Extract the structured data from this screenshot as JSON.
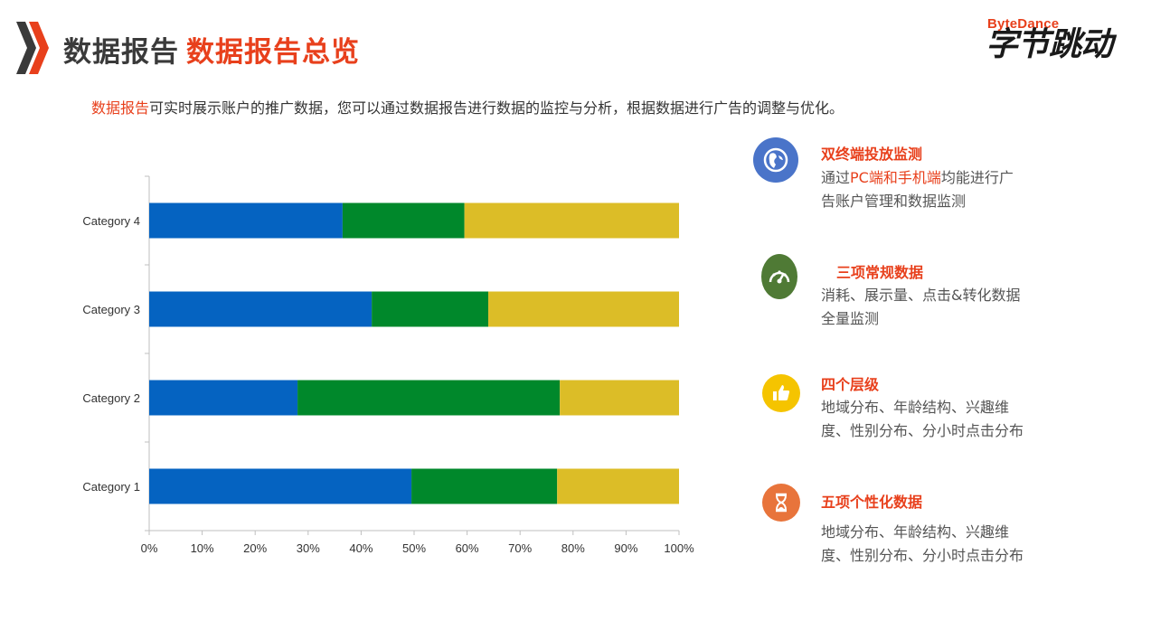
{
  "header": {
    "title_main": "数据报告",
    "title_sub": "数据报告总览"
  },
  "logo": {
    "top": "ByteDance",
    "bottom": "字节跳动"
  },
  "intro": {
    "highlight": "数据报告",
    "text": "可实时展示账户的推广数据，您可以通过数据报告进行数据的监控与分析，根据数据进行广告的调整与优化。"
  },
  "features": [
    {
      "icon": "globe-icon",
      "icon_color": "#4a74c9",
      "title": "双终端投放监测",
      "desc_pre": "通过",
      "desc_hl": "PC端和手机端",
      "desc_post": "均能进行广告账户管理和数据监测"
    },
    {
      "icon": "gauge-icon",
      "icon_color": "#4f7a35",
      "title": "三项常规数据",
      "desc_pre": "消耗、展示量、点击&转化数据全量监测",
      "desc_hl": "",
      "desc_post": ""
    },
    {
      "icon": "thumbs-up-icon",
      "icon_color": "#f5c400",
      "title": "四个层级",
      "desc_pre": "地域分布、年龄结构、兴趣维度、性别分布、分小时点击分布",
      "desc_hl": "",
      "desc_post": ""
    },
    {
      "icon": "hourglass-icon",
      "icon_color": "#e8743b",
      "title": "五项个性化数据",
      "desc_pre": "地域分布、年龄结构、兴趣维度、性别分布、分小时点击分布",
      "desc_hl": "",
      "desc_post": ""
    }
  ],
  "chart_data": {
    "type": "bar",
    "orientation": "horizontal",
    "stacked": "percent",
    "categories": [
      "Category 1",
      "Category 2",
      "Category 3",
      "Category 4"
    ],
    "series": [
      {
        "values": [
          49.5,
          28,
          42,
          36.5
        ],
        "color": "#0563c1"
      },
      {
        "values": [
          27.5,
          49.5,
          22,
          23
        ],
        "color": "#00882b"
      },
      {
        "values": [
          23,
          22.5,
          36,
          40.5
        ],
        "color": "#dcbd27"
      }
    ],
    "xticks": [
      "0%",
      "10%",
      "20%",
      "30%",
      "40%",
      "50%",
      "60%",
      "70%",
      "80%",
      "90%",
      "100%"
    ],
    "xlim": [
      0,
      100
    ],
    "grid": false,
    "legend": "none"
  }
}
